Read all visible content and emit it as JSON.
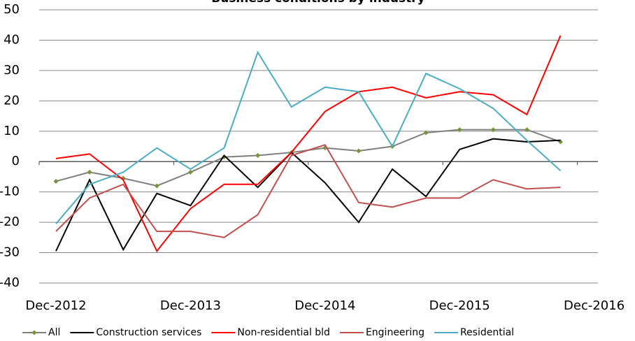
{
  "chart_data": {
    "type": "line",
    "title": "Business conditions by industry",
    "categories": [
      "Dec-2012",
      null,
      null,
      null,
      "Dec-2013",
      null,
      null,
      null,
      "Dec-2014",
      null,
      null,
      null,
      "Dec-2015",
      null,
      null,
      null,
      "Dec-2016"
    ],
    "series": [
      {
        "name": "All",
        "color": "#7f7f7f",
        "marker": "diamond",
        "markerColor": "#77933c",
        "values": [
          -6.5,
          -3.5,
          -5.5,
          -8,
          -3.5,
          1.5,
          2,
          3,
          4.5,
          3.5,
          5,
          9.5,
          10.5,
          10.5,
          10.5,
          6.5,
          null
        ]
      },
      {
        "name": "Construction services",
        "color": "#000000",
        "values": [
          -29.5,
          -6,
          -29,
          -10.5,
          -14.5,
          2,
          -8.5,
          3,
          -7,
          -20,
          -2.5,
          -11.5,
          4,
          7.5,
          6.5,
          7,
          null
        ]
      },
      {
        "name": "Non-residential bld",
        "color": "#ff0000",
        "values": [
          1,
          2.5,
          -6,
          -29.5,
          -15.5,
          -7.5,
          -7.5,
          3,
          16.5,
          23,
          24.5,
          21,
          23,
          22,
          15.5,
          41.5,
          null
        ]
      },
      {
        "name": "Engineering",
        "color": "#c0504d",
        "values": [
          -23,
          -12,
          -7.5,
          -23,
          -23,
          -25,
          -17.5,
          2,
          5.5,
          -13.5,
          -15,
          -12,
          -12,
          -6,
          -9,
          -8.5,
          null
        ]
      },
      {
        "name": "Residential",
        "color": "#4bacc6",
        "values": [
          -20.5,
          -7.5,
          -3.5,
          4.5,
          -2.5,
          4.5,
          36,
          18,
          24.5,
          23,
          5,
          29,
          24,
          17.5,
          7,
          -3,
          null
        ]
      }
    ],
    "ylim": [
      -40,
      50
    ],
    "yticks": [
      -40,
      -30,
      -20,
      -10,
      0,
      10,
      20,
      30,
      40,
      50
    ],
    "grid": true,
    "legend": "bottom"
  }
}
